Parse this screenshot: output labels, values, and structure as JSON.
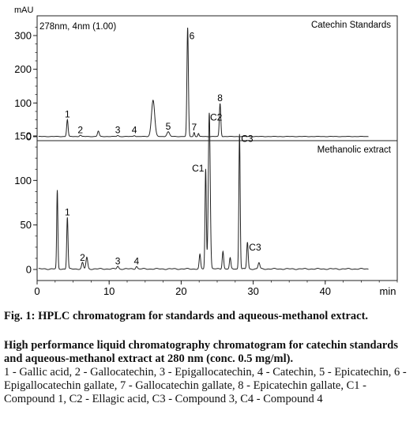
{
  "chart_data": {
    "type": "line",
    "y_unit": "mAU",
    "x_unit": "min",
    "x_axis": {
      "range": [
        0,
        50
      ],
      "ticks": [
        0,
        10,
        20,
        30,
        40
      ]
    },
    "panels": [
      {
        "title": "Catechin Standards",
        "detector": "278nm, 4nm (1.00)",
        "y_axis": {
          "range": [
            0,
            330
          ],
          "ticks": [
            0,
            100,
            200,
            300
          ]
        },
        "peaks": [
          {
            "rt": 4.2,
            "h": 50,
            "w": 0.1,
            "label": "1"
          },
          {
            "rt": 6.0,
            "h": 4,
            "w": 0.12,
            "label": "2"
          },
          {
            "rt": 8.5,
            "h": 16,
            "w": 0.12,
            "label": ""
          },
          {
            "rt": 11.2,
            "h": 3,
            "w": 0.12,
            "label": "3"
          },
          {
            "rt": 13.5,
            "h": 3,
            "w": 0.12,
            "label": "4"
          },
          {
            "rt": 16.1,
            "h": 108,
            "w": 0.22,
            "label": ""
          },
          {
            "rt": 18.2,
            "h": 14,
            "w": 0.18,
            "label": "5"
          },
          {
            "rt": 20.9,
            "h": 322,
            "w": 0.1,
            "label": "6"
          },
          {
            "rt": 21.8,
            "h": 12,
            "w": 0.08,
            "label": "7"
          },
          {
            "rt": 22.4,
            "h": 9,
            "w": 0.08,
            "label": ""
          },
          {
            "rt": 25.4,
            "h": 98,
            "w": 0.1,
            "label": "8"
          }
        ]
      },
      {
        "title": "Methanolic extract",
        "y_axis": {
          "range": [
            0,
            185
          ],
          "ticks": [
            0,
            50,
            100,
            150
          ]
        },
        "peaks": [
          {
            "rt": 2.8,
            "h": 88,
            "w": 0.08,
            "label": ""
          },
          {
            "rt": 4.2,
            "h": 58,
            "w": 0.09,
            "label": "1"
          },
          {
            "rt": 6.3,
            "h": 7,
            "w": 0.12,
            "label": "2"
          },
          {
            "rt": 6.9,
            "h": 13,
            "w": 0.12,
            "label": ""
          },
          {
            "rt": 11.2,
            "h": 3,
            "w": 0.12,
            "label": "3"
          },
          {
            "rt": 13.8,
            "h": 3,
            "w": 0.12,
            "label": "4"
          },
          {
            "rt": 22.6,
            "h": 16,
            "w": 0.1,
            "label": ""
          },
          {
            "rt": 23.4,
            "h": 112,
            "w": 0.09,
            "label": "C1"
          },
          {
            "rt": 23.9,
            "h": 176,
            "w": 0.13,
            "label": "C2"
          },
          {
            "rt": 25.8,
            "h": 20,
            "w": 0.1,
            "label": ""
          },
          {
            "rt": 26.8,
            "h": 12,
            "w": 0.1,
            "label": ""
          },
          {
            "rt": 28.1,
            "h": 152,
            "w": 0.09,
            "label": "C3"
          },
          {
            "rt": 29.2,
            "h": 30,
            "w": 0.1,
            "label": "C3"
          },
          {
            "rt": 30.8,
            "h": 7,
            "w": 0.12,
            "label": ""
          }
        ]
      }
    ]
  },
  "caption": {
    "title": "Fig. 1: HPLC chromatogram for standards and aqueous-methanol extract.",
    "description": "High performance liquid chromatography chromatogram for catechin standards and aqueous-methanol extract at 280 nm (conc. 0.5 mg/ml).",
    "legend": "1 - Gallic acid, 2 - Gallocatechin, 3 - Epigallocatechin, 4 - Catechin, 5 - Epicatechin, 6 - Epigallocatechin gallate, 7 - Gallocatechin gallate, 8 - Epicatechin gallate, C1 - Compound 1, C2 - Ellagic acid, C3 - Compound 3, C4 - Compound 4"
  }
}
